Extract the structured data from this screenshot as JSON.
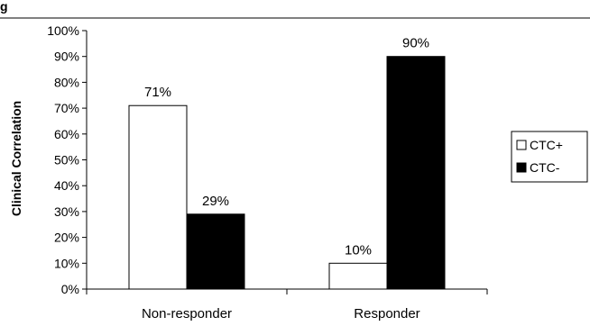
{
  "header_fragment": "g",
  "chart_data": {
    "type": "bar",
    "ylabel": "Clinical Correlation",
    "ylim": [
      0,
      100
    ],
    "y_ticks": [
      "0%",
      "10%",
      "20%",
      "30%",
      "40%",
      "50%",
      "60%",
      "70%",
      "80%",
      "90%",
      "100%"
    ],
    "categories": [
      "Non-responder",
      "Responder"
    ],
    "series": [
      {
        "name": "CTC+",
        "values": [
          71,
          10
        ],
        "labels": [
          "71%",
          "10%"
        ],
        "color": "#ffffff"
      },
      {
        "name": "CTC-",
        "values": [
          29,
          90
        ],
        "labels": [
          "29%",
          "90%"
        ],
        "color": "#000000"
      }
    ],
    "legend_position": "right",
    "grid": false
  }
}
